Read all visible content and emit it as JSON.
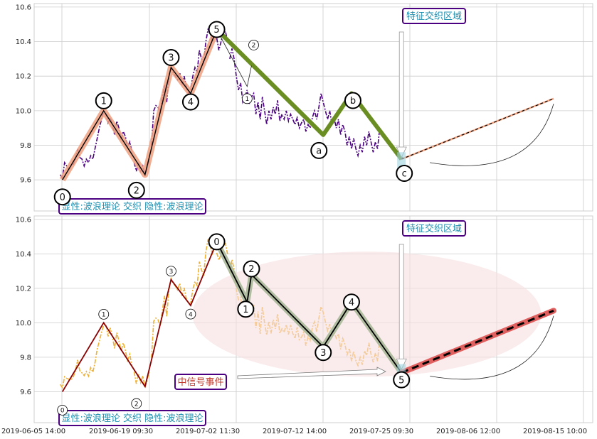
{
  "chart_data": [
    {
      "type": "line",
      "panel": "top",
      "ylim": [
        9.42,
        10.62
      ],
      "yticks": [
        "9.6",
        "9.8",
        "10.0",
        "10.2",
        "10.4",
        "10.6"
      ],
      "grid": true,
      "colors": {
        "price": "#4b0082",
        "wave_shadow": "#f0a080",
        "wave": "#000000",
        "corrective": "#6b8e23",
        "forecast": "#f4a582"
      },
      "price_series": [
        [
          0,
          9.63
        ],
        [
          1,
          9.61
        ],
        [
          2,
          9.7
        ],
        [
          3,
          9.68
        ],
        [
          4,
          9.66
        ],
        [
          5,
          9.68
        ],
        [
          6,
          9.69
        ],
        [
          7,
          9.72
        ],
        [
          8,
          9.78
        ],
        [
          9,
          9.73
        ],
        [
          10,
          9.72
        ],
        [
          11,
          9.68
        ],
        [
          12,
          9.72
        ],
        [
          13,
          9.7
        ],
        [
          14,
          9.74
        ],
        [
          15,
          9.72
        ],
        [
          16,
          9.78
        ],
        [
          17,
          9.84
        ],
        [
          18,
          9.9
        ],
        [
          19,
          9.95
        ],
        [
          20,
          10.0
        ],
        [
          21,
          9.98
        ],
        [
          22,
          9.93
        ],
        [
          23,
          9.96
        ],
        [
          24,
          9.92
        ],
        [
          25,
          9.86
        ],
        [
          26,
          9.94
        ],
        [
          27,
          9.9
        ],
        [
          28,
          9.83
        ],
        [
          29,
          9.88
        ],
        [
          30,
          9.85
        ],
        [
          31,
          9.79
        ],
        [
          32,
          9.82
        ],
        [
          33,
          9.76
        ],
        [
          34,
          9.7
        ],
        [
          35,
          9.65
        ],
        [
          36,
          9.7
        ],
        [
          37,
          9.65
        ],
        [
          38,
          9.68
        ],
        [
          39,
          9.63
        ],
        [
          40,
          9.67
        ],
        [
          41,
          9.72
        ],
        [
          42,
          9.8
        ],
        [
          43,
          10.0
        ],
        [
          44,
          10.03
        ],
        [
          45,
          10.02
        ],
        [
          46,
          9.99
        ],
        [
          47,
          10.08
        ],
        [
          48,
          10.15
        ],
        [
          49,
          10.05
        ],
        [
          50,
          10.2
        ],
        [
          51,
          10.25
        ],
        [
          52,
          10.22
        ],
        [
          53,
          10.2
        ],
        [
          54,
          10.18
        ],
        [
          55,
          10.22
        ],
        [
          56,
          10.15
        ],
        [
          57,
          10.2
        ],
        [
          58,
          10.14
        ],
        [
          59,
          10.1
        ],
        [
          60,
          10.12
        ],
        [
          61,
          10.2
        ],
        [
          62,
          10.25
        ],
        [
          63,
          10.22
        ],
        [
          64,
          10.35
        ],
        [
          65,
          10.3
        ],
        [
          66,
          10.28
        ],
        [
          67,
          10.4
        ],
        [
          68,
          10.47
        ],
        [
          69,
          10.45
        ],
        [
          70,
          10.4
        ],
        [
          71,
          10.44
        ],
        [
          72,
          10.42
        ],
        [
          73,
          10.35
        ],
        [
          74,
          10.4
        ],
        [
          75,
          10.45
        ],
        [
          76,
          10.46
        ],
        [
          77,
          10.4
        ],
        [
          78,
          10.3
        ],
        [
          79,
          10.36
        ],
        [
          80,
          10.3
        ],
        [
          81,
          10.2
        ],
        [
          82,
          10.12
        ],
        [
          83,
          10.16
        ],
        [
          84,
          10.05
        ],
        [
          85,
          10.08
        ],
        [
          86,
          10.12
        ],
        [
          87,
          10.04
        ],
        [
          88,
          10.08
        ],
        [
          89,
          10.1
        ],
        [
          90,
          9.98
        ],
        [
          91,
          10.05
        ],
        [
          92,
          9.95
        ],
        [
          93,
          10.08
        ],
        [
          94,
          10.0
        ],
        [
          95,
          9.92
        ],
        [
          96,
          10.0
        ],
        [
          97,
          9.95
        ],
        [
          98,
          10.02
        ],
        [
          99,
          9.98
        ],
        [
          100,
          10.06
        ],
        [
          101,
          9.94
        ],
        [
          102,
          9.98
        ],
        [
          103,
          9.95
        ],
        [
          104,
          10.0
        ],
        [
          105,
          9.94
        ],
        [
          106,
          9.98
        ],
        [
          107,
          9.95
        ],
        [
          108,
          9.92
        ],
        [
          109,
          9.96
        ],
        [
          110,
          9.9
        ],
        [
          111,
          9.93
        ],
        [
          112,
          9.95
        ],
        [
          113,
          9.88
        ],
        [
          114,
          9.92
        ],
        [
          115,
          9.9
        ],
        [
          116,
          9.96
        ],
        [
          117,
          10.0
        ],
        [
          118,
          9.95
        ],
        [
          119,
          10.02
        ],
        [
          120,
          10.1
        ],
        [
          121,
          10.05
        ],
        [
          122,
          10.0
        ],
        [
          123,
          9.95
        ],
        [
          124,
          10.0
        ],
        [
          125,
          9.92
        ],
        [
          126,
          9.96
        ],
        [
          127,
          9.9
        ],
        [
          128,
          9.95
        ],
        [
          129,
          9.86
        ],
        [
          130,
          9.92
        ],
        [
          131,
          9.88
        ],
        [
          132,
          9.8
        ],
        [
          133,
          9.85
        ],
        [
          134,
          9.78
        ],
        [
          135,
          9.84
        ],
        [
          136,
          9.78
        ],
        [
          137,
          9.74
        ],
        [
          138,
          9.8
        ],
        [
          139,
          9.76
        ],
        [
          140,
          9.85
        ],
        [
          141,
          9.8
        ],
        [
          142,
          9.88
        ],
        [
          143,
          9.82
        ],
        [
          144,
          9.76
        ],
        [
          145,
          9.82
        ],
        [
          146,
          9.78
        ],
        [
          147,
          9.9
        ]
      ],
      "wave_points": [
        {
          "label": "0",
          "x": 1,
          "y": 9.6
        },
        {
          "label": "1",
          "x": 20,
          "y": 10.0
        },
        {
          "label": "2",
          "x": 39,
          "y": 9.63
        },
        {
          "label": "3",
          "x": 51,
          "y": 10.25
        },
        {
          "label": "4",
          "x": 60,
          "y": 10.1
        },
        {
          "label": "5",
          "x": 72,
          "y": 10.47
        }
      ],
      "corrective_points": [
        {
          "label": "a",
          "x": 121,
          "y": 9.86
        },
        {
          "label": "b",
          "x": 134,
          "y": 10.1
        },
        {
          "label": "c",
          "x": 157,
          "y": 9.72
        }
      ],
      "forecast_line": [
        [
          157,
          9.72
        ],
        [
          227,
          10.07
        ]
      ],
      "annotations": {
        "feature_zone": "特征交织区域",
        "legend_box": "显性:波浪理论 交织 隐性:波浪理论"
      }
    },
    {
      "type": "line",
      "panel": "bottom",
      "ylim": [
        9.42,
        10.62
      ],
      "yticks": [
        "9.6",
        "9.8",
        "10.0",
        "10.2",
        "10.4",
        "10.6"
      ],
      "grid": true,
      "colors": {
        "price": "#f0b030",
        "wave": "#8b0000",
        "corrective_shadow": "#a8b898",
        "forecast": "#e06060",
        "ellipse": "#f6dde0"
      },
      "wave_points": [
        {
          "label": "0",
          "x": 1,
          "y": 9.6
        },
        {
          "label": "1",
          "x": 20,
          "y": 10.0
        },
        {
          "label": "2",
          "x": 39,
          "y": 9.63
        },
        {
          "label": "3",
          "x": 51,
          "y": 10.25
        },
        {
          "label": "4",
          "x": 60,
          "y": 10.1
        },
        {
          "label": "5",
          "x": 72,
          "y": 10.47
        }
      ],
      "corrective_points": [
        {
          "label": "0",
          "x": 72,
          "y": 10.47
        },
        {
          "label": "1",
          "x": 86,
          "y": 10.12
        },
        {
          "label": "2",
          "x": 88,
          "y": 10.28
        },
        {
          "label": "3",
          "x": 121,
          "y": 9.86
        },
        {
          "label": "4",
          "x": 134,
          "y": 10.12
        },
        {
          "label": "5",
          "x": 157,
          "y": 9.71
        }
      ],
      "forecast_line": [
        [
          157,
          9.71
        ],
        [
          227,
          10.07
        ]
      ],
      "annotations": {
        "feature_zone": "特征交织区域",
        "signal_event": "中信号事件",
        "legend_box": "显性:波浪理论 交织 隐性:波浪理论"
      }
    }
  ],
  "x_axis": {
    "tick_labels": [
      "2019-06-05 14:00",
      "2019-06-19 09:30",
      "2019-07-02 11:30",
      "2019-07-12 14:00",
      "2019-07-25 09:30",
      "2019-08-06 12:00",
      "2019-08-15 10:00"
    ]
  }
}
